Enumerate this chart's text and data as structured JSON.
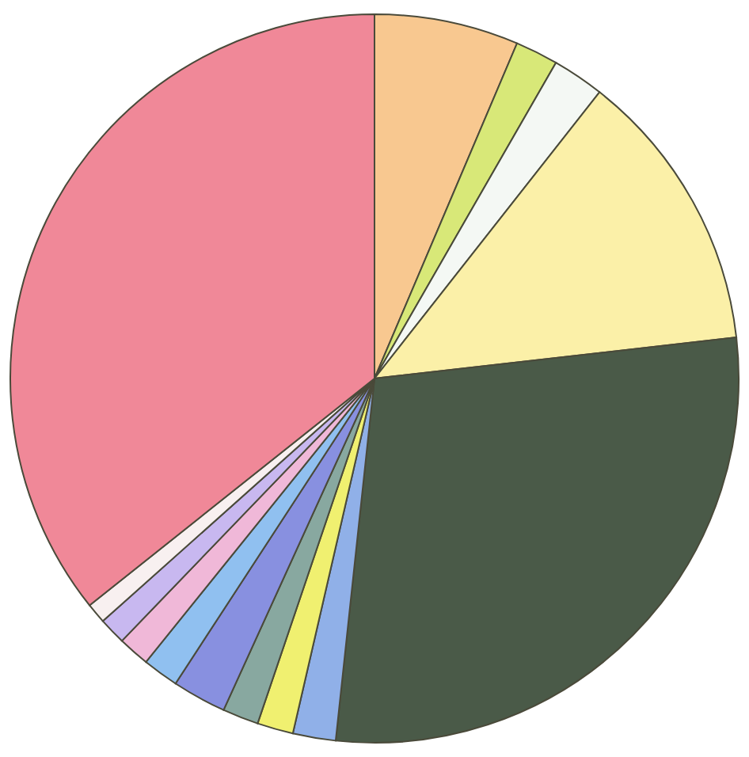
{
  "chart_data": {
    "type": "pie",
    "categories": [
      null,
      null,
      null,
      null,
      null,
      null,
      null,
      null,
      null,
      null,
      null,
      null,
      null,
      null
    ],
    "values": [
      6.4,
      1.9,
      2.3,
      12.6,
      28.5,
      1.9,
      1.6,
      1.6,
      2.4,
      1.6,
      1.4,
      1.2,
      0.9,
      35.7
    ],
    "colors": [
      "#f8c890",
      "#d8e878",
      "#f4f8f4",
      "#fbf0a8",
      "#4a5a48",
      "#90b0e8",
      "#f0f070",
      "#88a8a0",
      "#8890e0",
      "#90c0f0",
      "#f0b8d8",
      "#c8b8f0",
      "#f8f0f0",
      "#f08898"
    ],
    "legend": false
  }
}
